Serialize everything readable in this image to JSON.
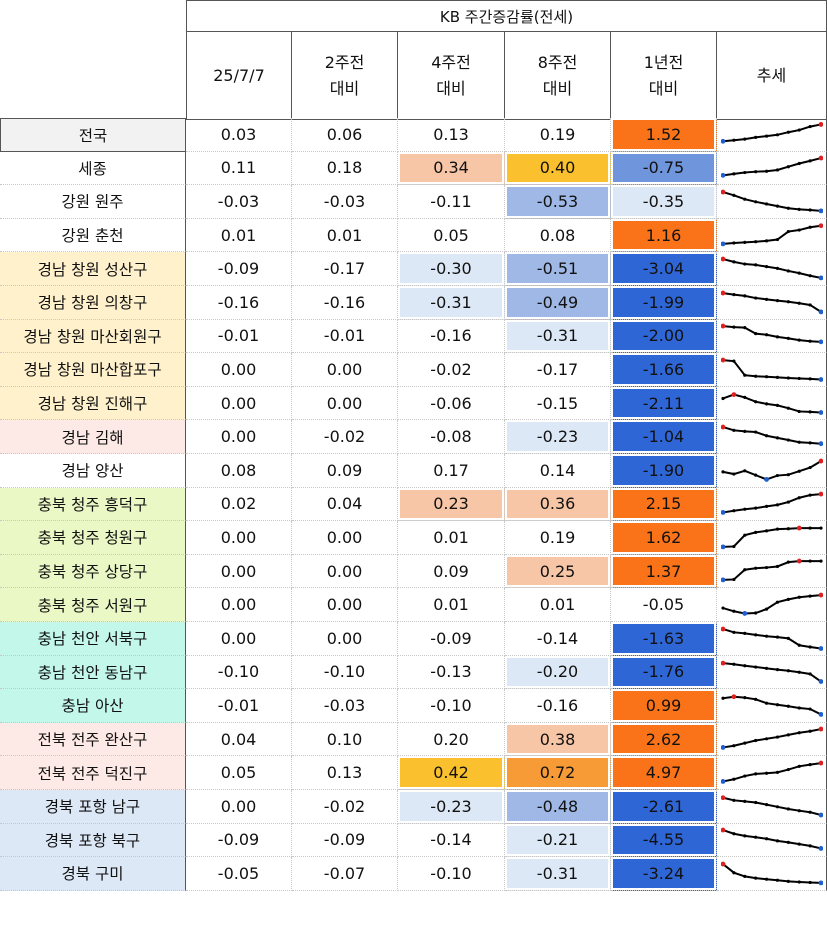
{
  "header": {
    "group_title": "KB 주간증감률(전세)",
    "columns": [
      {
        "key": "c1",
        "lines": [
          "25/7/7"
        ]
      },
      {
        "key": "c2",
        "lines": [
          "2주전",
          "대비"
        ]
      },
      {
        "key": "c3",
        "lines": [
          "4주전",
          "대비"
        ]
      },
      {
        "key": "c4",
        "lines": [
          "8주전",
          "대비"
        ]
      },
      {
        "key": "c5",
        "lines": [
          "1년전",
          "대비"
        ]
      },
      {
        "key": "c6",
        "lines": [
          "추세"
        ]
      }
    ]
  },
  "colors": {
    "orange_strong": "#fa7319",
    "orange_light": "#f7c6a6",
    "amber": "#fbc02d",
    "orange_mid": "#f69b35",
    "blue_strong": "#2f66d6",
    "blue_mid": "#6f95dc",
    "blue_soft": "#9fb8e6",
    "blue_light": "#dde8f7",
    "region_yellow": "#fff1cc",
    "region_pink": "#fde9e5",
    "region_lime": "#eaf8c5",
    "region_teal": "#c3f7ea",
    "region_blue": "#dde8f7",
    "region_gray": "#f2f2f2",
    "sparkline": "#000000",
    "spark_max": "#e02020",
    "spark_min": "#1f5fd0"
  },
  "rows": [
    {
      "label": "전국",
      "bg": "#f2f2f2",
      "values": [
        "0.03",
        "0.06",
        "0.13",
        "0.19",
        "1.52"
      ],
      "fills": [
        "",
        "",
        "",
        "",
        "#fa7319"
      ],
      "trend": [
        0.2,
        0.25,
        0.3,
        0.38,
        0.44,
        0.5,
        0.62,
        0.72,
        0.88,
        0.98
      ]
    },
    {
      "label": "세종",
      "bg": "",
      "values": [
        "0.11",
        "0.18",
        "0.34",
        "0.40",
        "-0.75"
      ],
      "fills": [
        "",
        "",
        "#f7c6a6",
        "#fbc02d",
        "#6f95dc"
      ],
      "trend": [
        0.15,
        0.22,
        0.28,
        0.32,
        0.34,
        0.4,
        0.55,
        0.7,
        0.82,
        0.95
      ]
    },
    {
      "label": "강원 원주",
      "bg": "",
      "values": [
        "-0.03",
        "-0.03",
        "-0.11",
        "-0.53",
        "-0.35"
      ],
      "fills": [
        "",
        "",
        "",
        "#9fb8e6",
        "#dde8f7"
      ],
      "trend": [
        0.95,
        0.8,
        0.62,
        0.5,
        0.4,
        0.3,
        0.2,
        0.15,
        0.12,
        0.08
      ]
    },
    {
      "label": "강원 춘천",
      "bg": "",
      "values": [
        "0.01",
        "0.01",
        "0.05",
        "0.08",
        "1.16"
      ],
      "fills": [
        "",
        "",
        "",
        "",
        "#fa7319"
      ],
      "trend": [
        0.08,
        0.12,
        0.15,
        0.18,
        0.22,
        0.28,
        0.65,
        0.72,
        0.85,
        0.92
      ]
    },
    {
      "label": "경남 창원 성산구",
      "bg": "#fff1cc",
      "values": [
        "-0.09",
        "-0.17",
        "-0.30",
        "-0.51",
        "-3.04"
      ],
      "fills": [
        "",
        "",
        "#dde8f7",
        "#9fb8e6",
        "#2f66d6"
      ],
      "trend": [
        0.95,
        0.82,
        0.72,
        0.68,
        0.6,
        0.52,
        0.4,
        0.3,
        0.18,
        0.08
      ]
    },
    {
      "label": "경남 창원 의창구",
      "bg": "#fff1cc",
      "values": [
        "-0.16",
        "-0.16",
        "-0.31",
        "-0.49",
        "-1.99"
      ],
      "fills": [
        "",
        "",
        "#dde8f7",
        "#9fb8e6",
        "#2f66d6"
      ],
      "trend": [
        0.95,
        0.88,
        0.82,
        0.72,
        0.66,
        0.6,
        0.55,
        0.48,
        0.4,
        0.08
      ]
    },
    {
      "label": "경남 창원 마산회원구",
      "bg": "#fff1cc",
      "values": [
        "-0.01",
        "-0.01",
        "-0.16",
        "-0.31",
        "-2.00"
      ],
      "fills": [
        "",
        "",
        "",
        "#dde8f7",
        "#2f66d6"
      ],
      "trend": [
        0.95,
        0.9,
        0.88,
        0.6,
        0.55,
        0.45,
        0.38,
        0.3,
        0.25,
        0.22
      ]
    },
    {
      "label": "경남 창원 마산합포구",
      "bg": "#fff1cc",
      "values": [
        "0.00",
        "0.00",
        "-0.02",
        "-0.17",
        "-1.66"
      ],
      "fills": [
        "",
        "",
        "",
        "",
        "#2f66d6"
      ],
      "trend": [
        0.95,
        0.9,
        0.25,
        0.2,
        0.18,
        0.15,
        0.12,
        0.1,
        0.08,
        0.05
      ]
    },
    {
      "label": "경남 창원 진해구",
      "bg": "#fff1cc",
      "values": [
        "0.00",
        "0.00",
        "-0.06",
        "-0.15",
        "-2.11"
      ],
      "fills": [
        "",
        "",
        "",
        "",
        "#2f66d6"
      ],
      "trend": [
        0.7,
        0.88,
        0.75,
        0.55,
        0.45,
        0.38,
        0.25,
        0.1,
        0.08,
        0.05
      ]
    },
    {
      "label": "경남 김해",
      "bg": "#fde9e5",
      "values": [
        "0.00",
        "-0.02",
        "-0.08",
        "-0.23",
        "-1.04"
      ],
      "fills": [
        "",
        "",
        "",
        "#dde8f7",
        "#2f66d6"
      ],
      "trend": [
        0.95,
        0.8,
        0.75,
        0.72,
        0.55,
        0.45,
        0.35,
        0.25,
        0.22,
        0.18
      ]
    },
    {
      "label": "경남 양산",
      "bg": "",
      "values": [
        "0.08",
        "0.09",
        "0.17",
        "0.14",
        "-1.90"
      ],
      "fills": [
        "",
        "",
        "",
        "",
        "#2f66d6"
      ],
      "trend": [
        0.45,
        0.35,
        0.5,
        0.3,
        0.1,
        0.28,
        0.32,
        0.48,
        0.65,
        0.95
      ]
    },
    {
      "label": "충북 청주 흥덕구",
      "bg": "#eaf8c5",
      "values": [
        "0.02",
        "0.04",
        "0.23",
        "0.36",
        "2.15"
      ],
      "fills": [
        "",
        "",
        "#f7c6a6",
        "#f7c6a6",
        "#fa7319"
      ],
      "trend": [
        0.1,
        0.18,
        0.25,
        0.3,
        0.38,
        0.45,
        0.58,
        0.78,
        0.9,
        0.95
      ]
    },
    {
      "label": "충북 청주 청원구",
      "bg": "#eaf8c5",
      "values": [
        "0.00",
        "0.00",
        "0.01",
        "0.19",
        "1.62"
      ],
      "fills": [
        "",
        "",
        "",
        "",
        "#fa7319"
      ],
      "trend": [
        0.08,
        0.1,
        0.62,
        0.75,
        0.82,
        0.9,
        0.92,
        0.95,
        0.95,
        0.95
      ]
    },
    {
      "label": "충북 청주 상당구",
      "bg": "#eaf8c5",
      "values": [
        "0.00",
        "0.00",
        "0.09",
        "0.25",
        "1.37"
      ],
      "fills": [
        "",
        "",
        "",
        "#f7c6a6",
        "#fa7319"
      ],
      "trend": [
        0.08,
        0.1,
        0.55,
        0.62,
        0.65,
        0.7,
        0.9,
        0.95,
        0.95,
        0.95
      ]
    },
    {
      "label": "충북 청주 서원구",
      "bg": "#eaf8c5",
      "values": [
        "0.00",
        "0.00",
        "0.01",
        "0.01",
        "-0.05"
      ],
      "fills": [
        "",
        "",
        "",
        "",
        ""
      ],
      "trend": [
        0.35,
        0.2,
        0.1,
        0.12,
        0.3,
        0.62,
        0.75,
        0.85,
        0.9,
        0.95
      ]
    },
    {
      "label": "충남 천안 서북구",
      "bg": "#c3f7ea",
      "values": [
        "0.00",
        "0.00",
        "-0.09",
        "-0.14",
        "-1.63"
      ],
      "fills": [
        "",
        "",
        "",
        "",
        "#2f66d6"
      ],
      "trend": [
        0.95,
        0.8,
        0.75,
        0.68,
        0.62,
        0.58,
        0.52,
        0.2,
        0.12,
        0.05
      ]
    },
    {
      "label": "충남 천안 동남구",
      "bg": "#c3f7ea",
      "values": [
        "-0.10",
        "-0.10",
        "-0.13",
        "-0.20",
        "-1.76"
      ],
      "fills": [
        "",
        "",
        "",
        "#dde8f7",
        "#2f66d6"
      ],
      "trend": [
        0.9,
        0.85,
        0.78,
        0.72,
        0.66,
        0.6,
        0.55,
        0.48,
        0.4,
        0.05
      ]
    },
    {
      "label": "충남 아산",
      "bg": "#c3f7ea",
      "values": [
        "-0.01",
        "-0.03",
        "-0.10",
        "-0.16",
        "0.99"
      ],
      "fills": [
        "",
        "",
        "",
        "",
        "#fa7319"
      ],
      "trend": [
        0.85,
        0.92,
        0.88,
        0.8,
        0.62,
        0.55,
        0.48,
        0.4,
        0.35,
        0.1
      ]
    },
    {
      "label": "전북 전주 완산구",
      "bg": "#fde9e5",
      "values": [
        "0.04",
        "0.10",
        "0.20",
        "0.38",
        "2.62"
      ],
      "fills": [
        "",
        "",
        "",
        "#f7c6a6",
        "#fa7319"
      ],
      "trend": [
        0.1,
        0.18,
        0.3,
        0.42,
        0.5,
        0.58,
        0.68,
        0.78,
        0.85,
        0.95
      ]
    },
    {
      "label": "전북 전주 덕진구",
      "bg": "#fde9e5",
      "values": [
        "0.05",
        "0.13",
        "0.42",
        "0.72",
        "4.97"
      ],
      "fills": [
        "",
        "",
        "#fbc02d",
        "#f69b35",
        "#fa7319"
      ],
      "trend": [
        0.1,
        0.2,
        0.35,
        0.45,
        0.48,
        0.52,
        0.65,
        0.8,
        0.88,
        0.95
      ]
    },
    {
      "label": "경북 포항 남구",
      "bg": "#dde8f7",
      "values": [
        "0.00",
        "-0.02",
        "-0.23",
        "-0.48",
        "-2.61"
      ],
      "fills": [
        "",
        "",
        "#dde8f7",
        "#9fb8e6",
        "#2f66d6"
      ],
      "trend": [
        0.92,
        0.8,
        0.75,
        0.7,
        0.6,
        0.5,
        0.4,
        0.32,
        0.25,
        0.12
      ]
    },
    {
      "label": "경북 포항 북구",
      "bg": "#dde8f7",
      "values": [
        "-0.09",
        "-0.09",
        "-0.14",
        "-0.21",
        "-4.55"
      ],
      "fills": [
        "",
        "",
        "",
        "#dde8f7",
        "#2f66d6"
      ],
      "trend": [
        0.95,
        0.78,
        0.68,
        0.62,
        0.55,
        0.45,
        0.38,
        0.3,
        0.22,
        0.1
      ]
    },
    {
      "label": "경북 구미",
      "bg": "#dde8f7",
      "values": [
        "-0.05",
        "-0.07",
        "-0.10",
        "-0.31",
        "-3.24"
      ],
      "fills": [
        "",
        "",
        "",
        "#dde8f7",
        "#2f66d6"
      ],
      "trend": [
        0.95,
        0.55,
        0.38,
        0.3,
        0.25,
        0.2,
        0.15,
        0.12,
        0.1,
        0.08
      ]
    }
  ]
}
